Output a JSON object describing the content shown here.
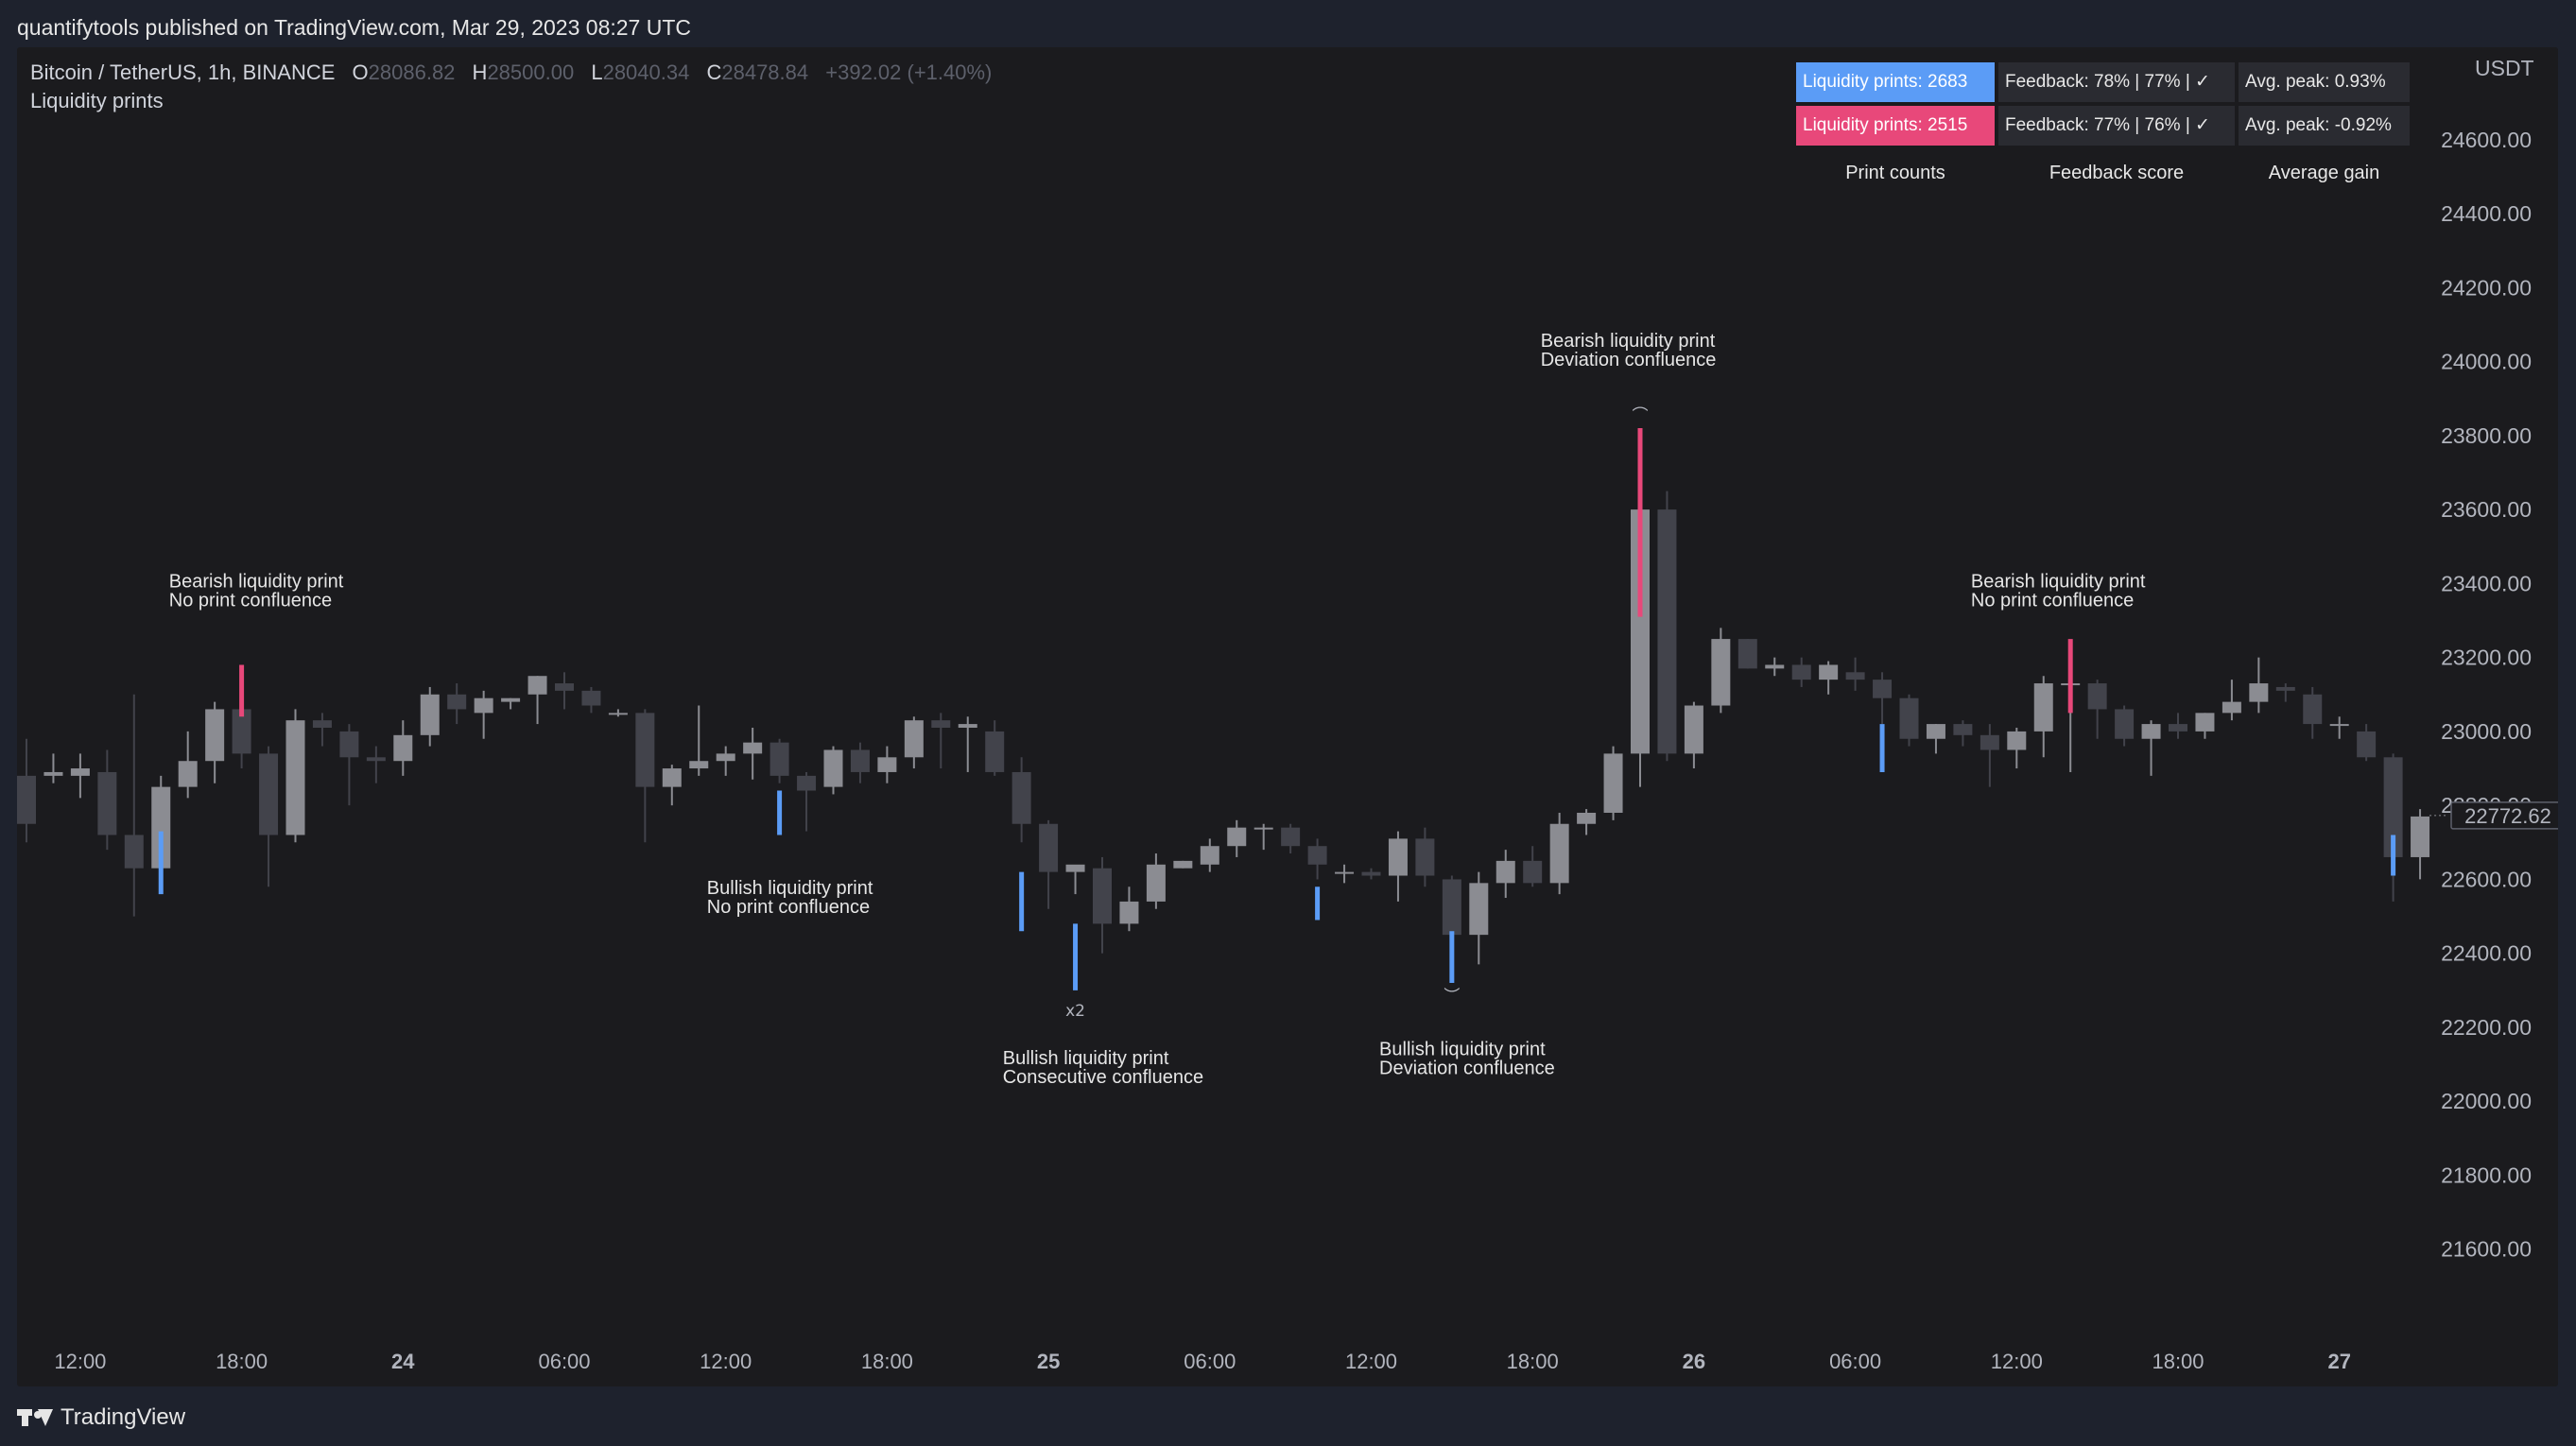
{
  "header": {
    "published_by": "quantifytools published on TradingView.com, Mar 29, 2023 08:27 UTC"
  },
  "legend": {
    "symbol": "Bitcoin / TetherUS, 1h, BINANCE",
    "open_label": "O",
    "open": "28086.82",
    "high_label": "H",
    "high": "28500.00",
    "low_label": "L",
    "low": "28040.34",
    "close_label": "C",
    "close": "28478.84",
    "change": "+392.02 (+1.40%)",
    "indicator": "Liquidity prints"
  },
  "stats_table": {
    "rows": [
      {
        "count": "Liquidity prints: 2683",
        "feedback": "Feedback: 78% | 77% | ✓",
        "peak": "Avg. peak: 0.93%"
      },
      {
        "count": "Liquidity prints: 2515",
        "feedback": "Feedback: 77% | 76% | ✓",
        "peak": "Avg. peak: -0.92%"
      }
    ],
    "captions": [
      "Print counts",
      "Feedback score",
      "Average gain"
    ]
  },
  "colors": {
    "background": "#1b1b1e",
    "candle_up": "#8b8c92",
    "candle_down": "#42434b",
    "bullish_print": "#5b9cf6",
    "bearish_print": "#e8487a"
  },
  "footer": {
    "brand": "TradingView"
  },
  "chart_data": {
    "type": "candlestick",
    "currency": "USDT",
    "last_price": "22772.62",
    "ylim": [
      21400,
      24850
    ],
    "y_ticks": [
      21600,
      21800,
      22000,
      22200,
      22400,
      22600,
      22800,
      23000,
      23200,
      23400,
      23600,
      23800,
      24000,
      24200,
      24400,
      24600
    ],
    "x_ticks": [
      {
        "label": "12:00",
        "bar": 2,
        "bold": false
      },
      {
        "label": "18:00",
        "bar": 8,
        "bold": false
      },
      {
        "label": "24",
        "bar": 14,
        "bold": true
      },
      {
        "label": "06:00",
        "bar": 20,
        "bold": false
      },
      {
        "label": "12:00",
        "bar": 26,
        "bold": false
      },
      {
        "label": "18:00",
        "bar": 32,
        "bold": false
      },
      {
        "label": "25",
        "bar": 38,
        "bold": true
      },
      {
        "label": "06:00",
        "bar": 44,
        "bold": false
      },
      {
        "label": "12:00",
        "bar": 50,
        "bold": false
      },
      {
        "label": "18:00",
        "bar": 56,
        "bold": false
      },
      {
        "label": "26",
        "bar": 62,
        "bold": true
      },
      {
        "label": "06:00",
        "bar": 68,
        "bold": false
      },
      {
        "label": "12:00",
        "bar": 74,
        "bold": false
      },
      {
        "label": "18:00",
        "bar": 80,
        "bold": false
      },
      {
        "label": "27",
        "bar": 86,
        "bold": true
      }
    ],
    "ohlc": [
      [
        22880,
        22980,
        22700,
        22750
      ],
      [
        22880,
        22940,
        22860,
        22890
      ],
      [
        22880,
        22940,
        22820,
        22900
      ],
      [
        22890,
        22950,
        22680,
        22720
      ],
      [
        22720,
        23100,
        22500,
        22630
      ],
      [
        22630,
        22880,
        22600,
        22850
      ],
      [
        22850,
        23000,
        22820,
        22920
      ],
      [
        22920,
        23080,
        22860,
        23060
      ],
      [
        23060,
        23180,
        22900,
        22940
      ],
      [
        22940,
        22960,
        22580,
        22720
      ],
      [
        22720,
        23060,
        22700,
        23030
      ],
      [
        23030,
        23050,
        22960,
        23010
      ],
      [
        23000,
        23020,
        22800,
        22930
      ],
      [
        22930,
        22960,
        22860,
        22920
      ],
      [
        22920,
        23030,
        22880,
        22990
      ],
      [
        22990,
        23120,
        22960,
        23100
      ],
      [
        23100,
        23130,
        23020,
        23060
      ],
      [
        23050,
        23110,
        22980,
        23090
      ],
      [
        23080,
        23090,
        23060,
        23090
      ],
      [
        23100,
        23150,
        23020,
        23150
      ],
      [
        23130,
        23160,
        23060,
        23110
      ],
      [
        23110,
        23120,
        23050,
        23070
      ],
      [
        23050,
        23060,
        23040,
        23050
      ],
      [
        23050,
        23060,
        22700,
        22850
      ],
      [
        22850,
        22910,
        22800,
        22900
      ],
      [
        22900,
        23070,
        22880,
        22920
      ],
      [
        22920,
        22960,
        22880,
        22940
      ],
      [
        22940,
        23010,
        22870,
        22970
      ],
      [
        22970,
        22980,
        22860,
        22880
      ],
      [
        22880,
        22890,
        22730,
        22840
      ],
      [
        22850,
        22960,
        22830,
        22950
      ],
      [
        22950,
        22970,
        22860,
        22890
      ],
      [
        22890,
        22960,
        22860,
        22930
      ],
      [
        22930,
        23040,
        22900,
        23030
      ],
      [
        23030,
        23050,
        22900,
        23010
      ],
      [
        23010,
        23040,
        22890,
        23020
      ],
      [
        23000,
        23030,
        22880,
        22890
      ],
      [
        22890,
        22930,
        22700,
        22750
      ],
      [
        22750,
        22760,
        22520,
        22620
      ],
      [
        22620,
        22620,
        22560,
        22640
      ],
      [
        22630,
        22660,
        22400,
        22480
      ],
      [
        22480,
        22580,
        22460,
        22540
      ],
      [
        22540,
        22670,
        22520,
        22640
      ],
      [
        22630,
        22650,
        22630,
        22650
      ],
      [
        22640,
        22710,
        22620,
        22690
      ],
      [
        22690,
        22760,
        22660,
        22740
      ],
      [
        22740,
        22750,
        22680,
        22740
      ],
      [
        22740,
        22750,
        22670,
        22690
      ],
      [
        22690,
        22710,
        22600,
        22640
      ],
      [
        22620,
        22640,
        22590,
        22620
      ],
      [
        22620,
        22630,
        22600,
        22610
      ],
      [
        22610,
        22730,
        22540,
        22710
      ],
      [
        22710,
        22740,
        22580,
        22610
      ],
      [
        22600,
        22610,
        22400,
        22450
      ],
      [
        22450,
        22620,
        22370,
        22590
      ],
      [
        22590,
        22680,
        22550,
        22650
      ],
      [
        22650,
        22690,
        22580,
        22590
      ],
      [
        22590,
        22780,
        22560,
        22750
      ],
      [
        22750,
        22790,
        22720,
        22780
      ],
      [
        22780,
        22960,
        22760,
        22940
      ],
      [
        22940,
        23620,
        22850,
        23600
      ],
      [
        23600,
        23650,
        22920,
        22940
      ],
      [
        22940,
        23080,
        22900,
        23070
      ],
      [
        23070,
        23280,
        23050,
        23250
      ],
      [
        23250,
        23250,
        23170,
        23170
      ],
      [
        23170,
        23200,
        23150,
        23180
      ],
      [
        23180,
        23200,
        23120,
        23140
      ],
      [
        23140,
        23190,
        23100,
        23180
      ],
      [
        23160,
        23200,
        23110,
        23140
      ],
      [
        23140,
        23160,
        23020,
        23090
      ],
      [
        23090,
        23100,
        22960,
        22980
      ],
      [
        22980,
        23020,
        22940,
        23020
      ],
      [
        23020,
        23030,
        22960,
        22990
      ],
      [
        22990,
        23020,
        22850,
        22950
      ],
      [
        22950,
        23010,
        22900,
        23000
      ],
      [
        23000,
        23150,
        22930,
        23130
      ],
      [
        23130,
        23150,
        22890,
        23130
      ],
      [
        23130,
        23140,
        22980,
        23060
      ],
      [
        23060,
        23070,
        22960,
        22980
      ],
      [
        22980,
        23030,
        22880,
        23020
      ],
      [
        23020,
        23050,
        22980,
        23000
      ],
      [
        23000,
        23050,
        22980,
        23050
      ],
      [
        23050,
        23140,
        23030,
        23080
      ],
      [
        23080,
        23200,
        23050,
        23130
      ],
      [
        23120,
        23130,
        23080,
        23110
      ],
      [
        23100,
        23120,
        22980,
        23020
      ],
      [
        23020,
        23040,
        22980,
        23020
      ],
      [
        23000,
        23020,
        22920,
        22930
      ],
      [
        22930,
        22940,
        22540,
        22660
      ],
      [
        22660,
        22790,
        22600,
        22770
      ]
    ],
    "prints": [
      {
        "bar": 5,
        "type": "bullish",
        "from": 22730,
        "to": 22560
      },
      {
        "bar": 8,
        "type": "bearish",
        "from": 23180,
        "to": 23040
      },
      {
        "bar": 28,
        "type": "bullish",
        "from": 22840,
        "to": 22720
      },
      {
        "bar": 37,
        "type": "bullish",
        "from": 22620,
        "to": 22460
      },
      {
        "bar": 39,
        "type": "bullish",
        "from": 22480,
        "to": 22300
      },
      {
        "bar": 48,
        "type": "bullish",
        "from": 22580,
        "to": 22490
      },
      {
        "bar": 53,
        "type": "bullish",
        "from": 22460,
        "to": 22320
      },
      {
        "bar": 60,
        "type": "bearish",
        "from": 23820,
        "to": 23310
      },
      {
        "bar": 69,
        "type": "bullish",
        "from": 23020,
        "to": 22890
      },
      {
        "bar": 76,
        "type": "bearish",
        "from": 23250,
        "to": 23050
      },
      {
        "bar": 88,
        "type": "bullish",
        "from": 22720,
        "to": 22610
      }
    ],
    "annotations": [
      {
        "lines": [
          "Bearish liquidity print",
          "No print confluence"
        ],
        "bar": 5.3,
        "price": 23390
      },
      {
        "lines": [
          "Bullish liquidity print",
          "No print confluence"
        ],
        "bar": 25.3,
        "price": 22560
      },
      {
        "lines": [
          "Bullish liquidity print",
          "Consecutive confluence"
        ],
        "bar": 36.3,
        "price": 22100
      },
      {
        "lines": [
          "Bullish liquidity print",
          "Deviation confluence"
        ],
        "bar": 50.3,
        "price": 22125
      },
      {
        "lines": [
          "Bearish liquidity print",
          "Deviation confluence"
        ],
        "bar": 56.3,
        "price": 24040
      },
      {
        "lines": [
          "Bearish liquidity print",
          "No print confluence"
        ],
        "bar": 72.3,
        "price": 23390
      }
    ],
    "small_marks": [
      {
        "text": "x2",
        "bar": 39,
        "price": 22230
      },
      {
        "text": "︵",
        "bar": 60,
        "price": 23870
      },
      {
        "text": "︶",
        "bar": 53,
        "price": 22270
      }
    ]
  }
}
